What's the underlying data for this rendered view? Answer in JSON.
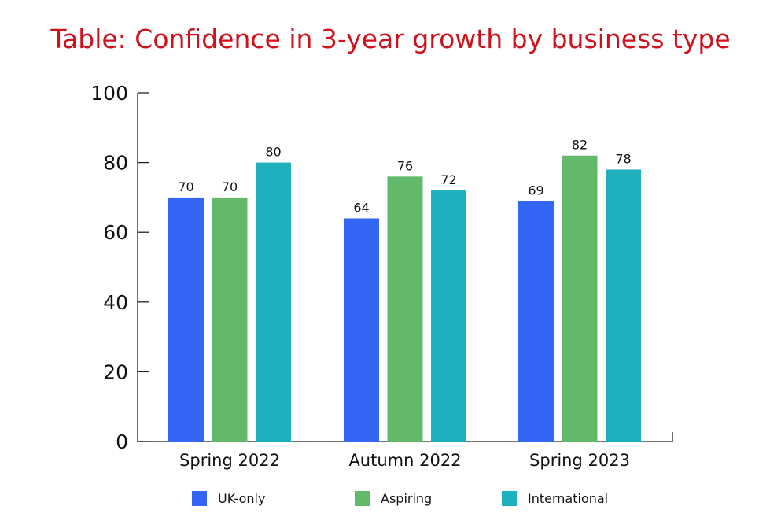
{
  "chart_data": {
    "type": "bar",
    "title": "Table: Confidence in 3-year growth by business type",
    "xlabel": "",
    "ylabel": "",
    "ylim": [
      0,
      100
    ],
    "yticks": [
      0,
      20,
      40,
      60,
      80,
      100
    ],
    "categories": [
      "Spring 2022",
      "Autumn 2022",
      "Spring 2023"
    ],
    "series": [
      {
        "name": "UK-only",
        "color": "#3366f5",
        "values": [
          70,
          64,
          69
        ]
      },
      {
        "name": "Aspiring",
        "color": "#63b96a",
        "values": [
          70,
          76,
          82
        ]
      },
      {
        "name": "International",
        "color": "#1fb0be",
        "values": [
          80,
          72,
          78
        ]
      }
    ],
    "grid": false,
    "legend": "bottom"
  }
}
